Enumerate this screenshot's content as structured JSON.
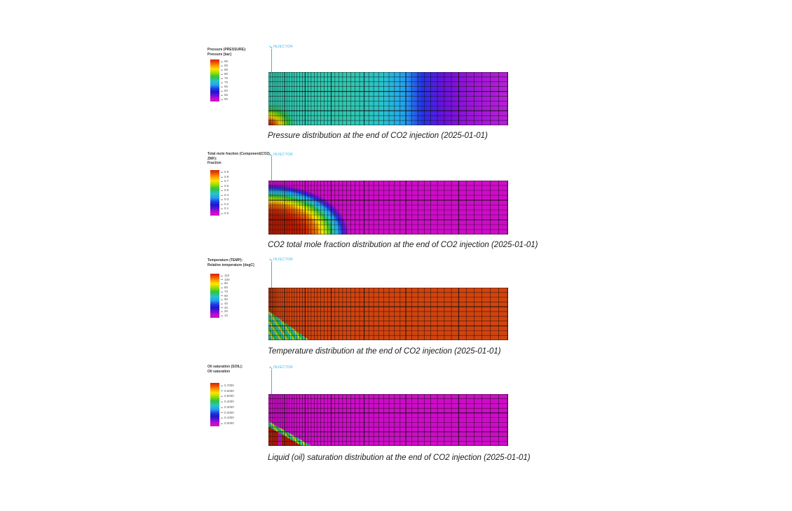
{
  "colors": {
    "teal": "#2fc7b0",
    "cyan": "#29c2cf",
    "skyblue": "#22a0f0",
    "blue": "#2434e8",
    "violet": "#6a10dc",
    "purpleMag": "#9a14d8",
    "orchid": "#b81fd8",
    "magenta": "#ce0cc8",
    "redDark": "#bb1a00",
    "red": "#d92e00",
    "orange": "#f07800",
    "yellow": "#ffe400",
    "yellowGreen": "#a6e000",
    "green": "#2fc43c",
    "tempBase": "#d2430e",
    "tempDark": "#b53206",
    "injector": "#3ab4e4",
    "caption": "#1c1c1c",
    "legendText": "#333333",
    "tickText": "#555555"
  },
  "panels": [
    {
      "id": "pressure",
      "legend_title_lines": [
        "Pressure (PRESSURE):",
        "Pressure [bar]"
      ],
      "colorbar_ticks": [
        "95",
        "90",
        "85",
        "80",
        "75",
        "70",
        "65",
        "60",
        "55",
        "50"
      ],
      "injector_label": "INJECTOR",
      "caption": "Pressure distribution at the end of CO2 injection (2025-01-01)"
    },
    {
      "id": "co2-mole-fraction",
      "legend_title_lines": [
        "Total mole fraction (Component(CO2)",
        "ZMF):",
        "Fraction"
      ],
      "colorbar_ticks": [
        "0.9",
        "0.8",
        "0.7",
        "0.6",
        "0.5",
        "0.4",
        "0.3",
        "0.2",
        "0.1",
        "0.0"
      ],
      "injector_label": "INJECTOR",
      "caption": "CO2 total mole fraction distribution at the end of CO2 injection (2025-01-01)"
    },
    {
      "id": "temperature",
      "legend_title_lines": [
        "Temperature (TEMP):",
        "Relative temperature [degC]"
      ],
      "colorbar_ticks": [
        "110",
        "100",
        "90",
        "80",
        "70",
        "60",
        "50",
        "40",
        "30",
        "20",
        "10"
      ],
      "injector_label": "INJECTOR",
      "caption": "Temperature distribution at the end of CO2 injection (2025-01-01)"
    },
    {
      "id": "oil-saturation",
      "legend_title_lines": [
        "Oil saturation (SOIL):",
        "Oil saturation"
      ],
      "colorbar_ticks": [
        "0.7000",
        "0.6000",
        "0.5000",
        "0.4000",
        "0.3000",
        "0.2000",
        "0.1000",
        "0.0000"
      ],
      "injector_label": "INJECTOR",
      "caption": "Liquid (oil) saturation distribution at the end of CO2 injection (2025-01-01)"
    }
  ],
  "chart_data": [
    {
      "type": "heatmap",
      "title": "Pressure distribution at the end of CO2 injection (2025-01-01)",
      "variable": "Pressure (PRESSURE) [bar]",
      "well_annotation": "INJECTOR vertical well at top-left of grid",
      "colorbar": {
        "label_lines": [
          "Pressure (PRESSURE):",
          "Pressure [bar]"
        ],
        "ticks_est": [
          "95",
          "90",
          "85",
          "80",
          "75",
          "70",
          "65",
          "60",
          "55",
          "50"
        ],
        "orientation": "vertical, red = high at top, magenta = low at bottom"
      },
      "spatial_pattern": [
        {
          "region": "bottom-left corner near injector, <=13% width x <=45% height",
          "value_est": "highest pressure ~90-95 bar",
          "colors": "red core with orange/yellow/green rings"
        },
        {
          "region": "left ~55% of domain",
          "value_est": "~75-80 bar",
          "colors": "teal/cyan"
        },
        {
          "region": "~60-72% of width",
          "value_est": "~65-70 bar",
          "colors": "blue band"
        },
        {
          "region": "right ~28% of domain",
          "value_est": "lowest ~50-55 bar",
          "colors": "violet to magenta-purple"
        }
      ],
      "mesh": {
        "columns": "~50 vertical lines, spacing widening logarithmically to the right",
        "rows": "~11 uniform horizontal layers"
      }
    },
    {
      "type": "heatmap",
      "title": "CO2 total mole fraction distribution at the end of CO2 injection (2025-01-01)",
      "variable": "Total mole fraction (Component(CO2) ZMF) [fraction]",
      "well_annotation": "INJECTOR vertical well at top-left of grid",
      "colorbar": {
        "label_lines": [
          "Total mole fraction (Component(CO2)",
          "ZMF):",
          "Fraction"
        ],
        "ticks_est": [
          "0.9",
          "0.8",
          "0.7",
          "0.6",
          "0.5",
          "0.4",
          "0.3",
          "0.2",
          "0.1",
          "0.0"
        ],
        "orientation": "vertical, red = high at top, magenta = low at bottom"
      },
      "spatial_pattern": [
        {
          "region": "quarter-ellipse plume from bottom-left, ~34% width at bottom, nearly reaching top edge at far left",
          "value_est": "CO2-rich ~0.9-1.0 in red core (<=16% width)",
          "colors": "red core rimmed by orange-yellow-green-cyan-blue-violet bands"
        },
        {
          "region": "rest of domain",
          "value_est": "~0.0",
          "colors": "magenta"
        }
      ],
      "mesh": {
        "columns": "~50 vertical lines widening to the right",
        "rows": "~11 uniform layers"
      }
    },
    {
      "type": "heatmap",
      "title": "Temperature distribution at the end of CO2 injection (2025-01-01)",
      "variable": "Temperature (TEMP), relative temperature [degC]",
      "well_annotation": "INJECTOR vertical well at top-left of grid",
      "colorbar": {
        "label_lines": [
          "Temperature (TEMP):",
          "Relative temperature [degC]"
        ],
        "ticks_est": [
          "110",
          "100",
          "90",
          "80",
          "70",
          "60",
          "50",
          "40",
          "30",
          "20",
          "10"
        ],
        "orientation": "vertical, red = hot at top, magenta = cold at bottom"
      },
      "spatial_pattern": [
        {
          "region": "cooled wedge at bottom-left, from ~44% height on left edge down to ~17% width at bottom",
          "value_est": "cooled ~30-60 degC",
          "colors": "mottled green/cyan/yellow cells"
        },
        {
          "region": "rest of domain",
          "value_est": "initial reservoir temperature ~100-110 degC",
          "colors": "uniform orange-red"
        }
      ],
      "mesh": {
        "columns": "~50 vertical lines widening to the right",
        "rows": "~11 uniform layers"
      }
    },
    {
      "type": "heatmap",
      "title": "Liquid (oil) saturation distribution at the end of CO2 injection (2025-01-01)",
      "variable": "Oil saturation (SOIL) [fraction]",
      "well_annotation": "INJECTOR vertical well at top-left of grid",
      "colorbar": {
        "label_lines": [
          "Oil saturation (SOIL):",
          "Oil saturation"
        ],
        "ticks_est": [
          "0.7000",
          "0.6000",
          "0.5000",
          "0.4000",
          "0.3000",
          "0.2000",
          "0.1000",
          "0.0000"
        ],
        "orientation": "vertical, red = high at top, magenta = low at bottom"
      },
      "spatial_pattern": [
        {
          "region": "oil-bank wedge at bottom-left, left edge below ~52% height to ~18% width at bottom",
          "value_est": "high oil saturation ~0.6-0.7 in red cells, rim ~0.2-0.5",
          "colors": "red core, yellow/green/cyan rim, thin magenta gap strip near x~4-5%"
        },
        {
          "region": "rest of domain",
          "value_est": "~0.0",
          "colors": "magenta"
        }
      ],
      "mesh": {
        "columns": "~50 vertical lines widening to the right",
        "rows": "~11 uniform layers"
      }
    }
  ]
}
